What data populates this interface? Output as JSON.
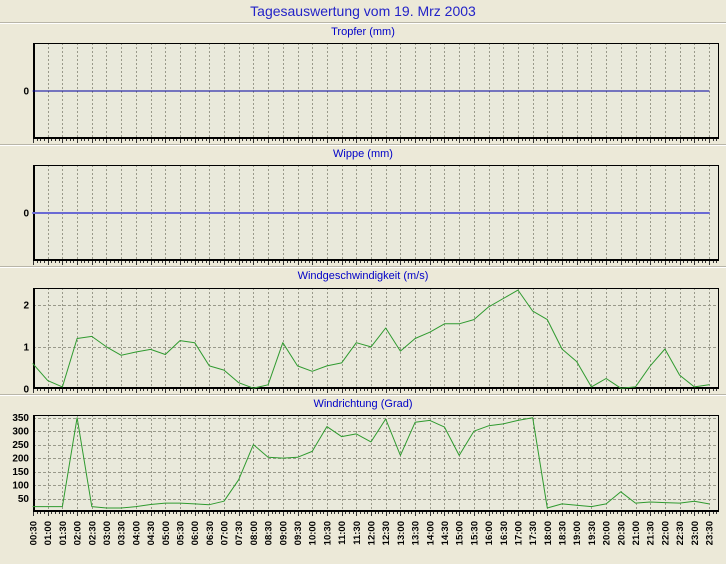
{
  "page": {
    "title": "Tagesauswertung vom 19. Mrz 2003"
  },
  "colors": {
    "page_bg": "#ece9d8",
    "plot_bg": "#e9e9db",
    "title_blue": "#2222c8",
    "subtitle_blue": "#0000c8",
    "grid": "#99998a",
    "axis": "#000000",
    "tropfer_line": "#0000a0",
    "wippe_line": "#6a6ad4",
    "wind_line": "#2f9a2f"
  },
  "x_axis": {
    "labels": [
      "00:30",
      "01:00",
      "01:30",
      "02:00",
      "02:30",
      "03:00",
      "03:30",
      "04:00",
      "04:30",
      "05:00",
      "05:30",
      "06:00",
      "06:30",
      "07:00",
      "07:30",
      "08:00",
      "08:30",
      "09:00",
      "09:30",
      "10:00",
      "10:30",
      "11:00",
      "11:30",
      "12:00",
      "12:30",
      "13:00",
      "13:30",
      "14:00",
      "14:30",
      "15:00",
      "15:30",
      "16:00",
      "16:30",
      "17:00",
      "17:30",
      "18:00",
      "18:30",
      "19:00",
      "19:30",
      "20:00",
      "20:30",
      "21:00",
      "21:30",
      "22:00",
      "22:30",
      "23:00",
      "23:30"
    ]
  },
  "chart_data": [
    {
      "id": "tropfer",
      "type": "line",
      "title": "Tropfer (mm)",
      "ylabel": "mm",
      "ylim": [
        -1,
        1
      ],
      "y_ticks": [
        0
      ],
      "y_grid": [],
      "color_key": "tropfer_line",
      "line_width": 1,
      "show_x_labels": false,
      "values": [
        0,
        0,
        0,
        0,
        0,
        0,
        0,
        0,
        0,
        0,
        0,
        0,
        0,
        0,
        0,
        0,
        0,
        0,
        0,
        0,
        0,
        0,
        0,
        0,
        0,
        0,
        0,
        0,
        0,
        0,
        0,
        0,
        0,
        0,
        0,
        0,
        0,
        0,
        0,
        0,
        0,
        0,
        0,
        0,
        0,
        0,
        0
      ]
    },
    {
      "id": "wippe",
      "type": "line",
      "title": "Wippe (mm)",
      "ylabel": "mm",
      "ylim": [
        -1,
        1
      ],
      "y_ticks": [
        0
      ],
      "y_grid": [],
      "color_key": "wippe_line",
      "line_width": 2,
      "show_x_labels": false,
      "values": [
        0,
        0,
        0,
        0,
        0,
        0,
        0,
        0,
        0,
        0,
        0,
        0,
        0,
        0,
        0,
        0,
        0,
        0,
        0,
        0,
        0,
        0,
        0,
        0,
        0,
        0,
        0,
        0,
        0,
        0,
        0,
        0,
        0,
        0,
        0,
        0,
        0,
        0,
        0,
        0,
        0,
        0,
        0,
        0,
        0,
        0,
        0
      ]
    },
    {
      "id": "windgeschwindigkeit",
      "type": "line",
      "title": "Windgeschwindigkeit (m/s)",
      "ylabel": "m/s",
      "ylim": [
        0,
        2.4
      ],
      "y_ticks": [
        0,
        1,
        2
      ],
      "y_grid": [
        1,
        2
      ],
      "color_key": "wind_line",
      "line_width": 1,
      "show_x_labels": false,
      "values": [
        0.6,
        0.2,
        0.05,
        1.2,
        1.25,
        1.0,
        0.8,
        0.88,
        0.94,
        0.82,
        1.15,
        1.1,
        0.55,
        0.45,
        0.15,
        0.02,
        0.1,
        1.1,
        0.55,
        0.42,
        0.55,
        0.62,
        1.1,
        1.0,
        1.45,
        0.9,
        1.2,
        1.35,
        1.55,
        1.55,
        1.65,
        1.95,
        2.15,
        2.35,
        1.85,
        1.65,
        0.95,
        0.65,
        0.05,
        0.25,
        0.02,
        0.05,
        0.55,
        0.95,
        0.33,
        0.05,
        0.1
      ]
    },
    {
      "id": "windrichtung",
      "type": "line",
      "title": "Windrichtung (Grad)",
      "ylabel": "Grad",
      "ylim": [
        0,
        360
      ],
      "y_ticks": [
        50,
        100,
        150,
        200,
        250,
        300,
        350
      ],
      "y_grid": [
        50,
        100,
        150,
        200,
        250,
        300,
        350
      ],
      "color_key": "wind_line",
      "line_width": 1,
      "show_x_labels": true,
      "values": [
        20,
        20,
        20,
        350,
        20,
        15,
        15,
        20,
        28,
        33,
        33,
        30,
        27,
        40,
        120,
        250,
        203,
        200,
        203,
        225,
        317,
        280,
        290,
        260,
        345,
        210,
        333,
        340,
        315,
        210,
        300,
        320,
        327,
        340,
        350,
        15,
        30,
        25,
        20,
        30,
        75,
        33,
        37,
        35,
        33,
        40,
        30
      ]
    }
  ]
}
